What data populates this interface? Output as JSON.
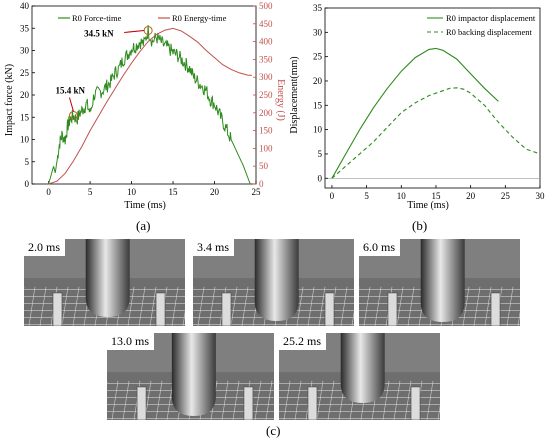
{
  "chart_data": [
    {
      "type": "line",
      "panel": "(a)",
      "xlabel": "Time (ms)",
      "ylabel": "Impact force (kN)",
      "y2label": "Energy (J)",
      "xlim": [
        -2,
        25
      ],
      "ylim": [
        0,
        40
      ],
      "y2lim": [
        0,
        500
      ],
      "xticks": [
        "0",
        "5",
        "10",
        "15",
        "20",
        "25"
      ],
      "yticks": [
        "0",
        "5",
        "10",
        "15",
        "20",
        "25",
        "30",
        "35",
        "40"
      ],
      "y2ticks": [
        "0",
        "50",
        "100",
        "150",
        "200",
        "250",
        "300",
        "350",
        "400",
        "450",
        "500"
      ],
      "series": [
        {
          "name": "R0 Force-time",
          "color": "#2e8b1e",
          "axis": "left",
          "x": [
            0,
            0.3,
            0.6,
            0.8,
            1.0,
            1.3,
            1.6,
            2.0,
            2.3,
            2.6,
            3.0,
            3.4,
            3.8,
            4.2,
            4.6,
            5.0,
            5.5,
            6.0,
            6.5,
            7.0,
            7.5,
            8.0,
            8.5,
            9.0,
            9.5,
            10.0,
            10.5,
            11.0,
            11.5,
            12.0,
            12.5,
            13.0,
            13.5,
            14.0,
            14.5,
            15.0,
            15.5,
            16.0,
            16.5,
            17.0,
            17.5,
            18.0,
            18.5,
            19.0,
            19.5,
            20.0,
            20.5,
            21.0,
            21.5,
            22.0,
            22.5,
            23.0,
            23.5,
            24.0,
            24.3
          ],
          "y": [
            0,
            2,
            4,
            2.5,
            5,
            9,
            11,
            10,
            13,
            14.5,
            15.4,
            14.5,
            16,
            17,
            18,
            16,
            20,
            20.5,
            21,
            22,
            23,
            25,
            26,
            28,
            29,
            30.5,
            31,
            32,
            31.5,
            34.5,
            32,
            33,
            32,
            31,
            30.5,
            29.5,
            29,
            28,
            27,
            26,
            24,
            23,
            22,
            21,
            19,
            18,
            16,
            14,
            12,
            10,
            8,
            6,
            4,
            1.5,
            0
          ]
        },
        {
          "name": "R0 Energy-time",
          "color": "#c0504d",
          "axis": "right",
          "x": [
            0,
            1,
            2,
            3,
            4,
            5,
            6,
            7,
            8,
            9,
            10,
            11,
            12,
            13,
            14,
            15,
            16,
            17,
            18,
            19,
            20,
            21,
            22,
            23,
            24,
            24.5
          ],
          "y": [
            0,
            8,
            30,
            65,
            105,
            150,
            190,
            230,
            268,
            305,
            340,
            372,
            400,
            420,
            432,
            437,
            430,
            415,
            398,
            375,
            355,
            335,
            322,
            312,
            306,
            305
          ]
        }
      ],
      "annotations": [
        {
          "text": "15.4 kN",
          "x": 3.0,
          "y": 15.4
        },
        {
          "text": "34.5 kN",
          "x": 12.0,
          "y": 34.5
        }
      ]
    },
    {
      "type": "line",
      "panel": "(b)",
      "xlabel": "Time (ms)",
      "ylabel": "Displacement(mm)",
      "xlim": [
        -1,
        30
      ],
      "ylim": [
        -2,
        35
      ],
      "xticks": [
        "0",
        "5",
        "10",
        "15",
        "20",
        "25",
        "30"
      ],
      "yticks": [
        "0",
        "5",
        "10",
        "15",
        "20",
        "25",
        "30",
        "35"
      ],
      "series": [
        {
          "name": "R0 impactor displacement",
          "color": "#2e8b1e",
          "style": "solid",
          "x": [
            0,
            2,
            4,
            6,
            8,
            10,
            12,
            14,
            15,
            16,
            18,
            20,
            22,
            24
          ],
          "y": [
            0,
            5,
            10,
            14.5,
            18.5,
            22,
            24.8,
            26.5,
            26.7,
            26.3,
            24.5,
            21.5,
            18.5,
            15.8
          ]
        },
        {
          "name": "R0 backing displacement",
          "color": "#2e8b1e",
          "style": "dashed",
          "x": [
            0,
            2,
            4,
            6,
            8,
            10,
            12,
            14,
            16,
            17,
            18,
            19,
            20,
            22,
            24,
            26,
            28,
            30
          ],
          "y": [
            0,
            2.5,
            5,
            7.5,
            10.5,
            13.5,
            15.5,
            17,
            18,
            18.5,
            18.6,
            18.3,
            17.5,
            15,
            11.5,
            8.5,
            6,
            5
          ]
        }
      ]
    }
  ],
  "labels": {
    "a": "(a)",
    "b": "(b)",
    "c": "(c)"
  },
  "frames": [
    {
      "time": "2.0 ms",
      "tip": 78
    },
    {
      "time": "3.4 ms",
      "tip": 82
    },
    {
      "time": "6.0 ms",
      "tip": 84
    },
    {
      "time": "13.0 ms",
      "tip": 86
    },
    {
      "time": "25.2 ms",
      "tip": 70
    }
  ]
}
